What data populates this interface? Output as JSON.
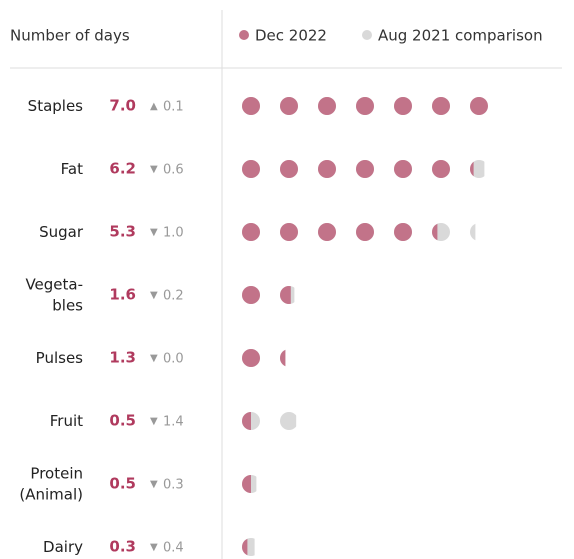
{
  "chart_data": {
    "type": "dot",
    "axis_label": "Number of days",
    "legend": [
      {
        "name": "Dec 2022",
        "color": "#c27389"
      },
      {
        "name": "Aug 2021 comparison",
        "color": "#d9d9d9"
      }
    ],
    "arrow_up": "▲",
    "arrow_down": "▼",
    "categories": [
      [
        "Staples"
      ],
      [
        "Fat"
      ],
      [
        "Sugar"
      ],
      [
        "Vegeta-",
        "bles"
      ],
      [
        "Pulses"
      ],
      [
        "Fruit"
      ],
      [
        "Protein",
        "(Animal)"
      ],
      [
        "Dairy"
      ]
    ],
    "values": [
      7.0,
      6.2,
      5.3,
      1.6,
      1.3,
      0.5,
      0.5,
      0.3
    ],
    "value_labels": [
      "7.0",
      "6.2",
      "5.3",
      "1.6",
      "1.3",
      "0.5",
      "0.5",
      "0.3"
    ],
    "changes": [
      0.1,
      0.6,
      1.0,
      0.2,
      0.0,
      1.4,
      0.3,
      0.4
    ],
    "change_labels": [
      "0.1",
      "0.6",
      "1.0",
      "0.2",
      "0.0",
      "1.4",
      "0.3",
      "0.4"
    ],
    "change_direction": [
      "up",
      "down",
      "down",
      "down",
      "down",
      "down",
      "down",
      "down"
    ]
  }
}
